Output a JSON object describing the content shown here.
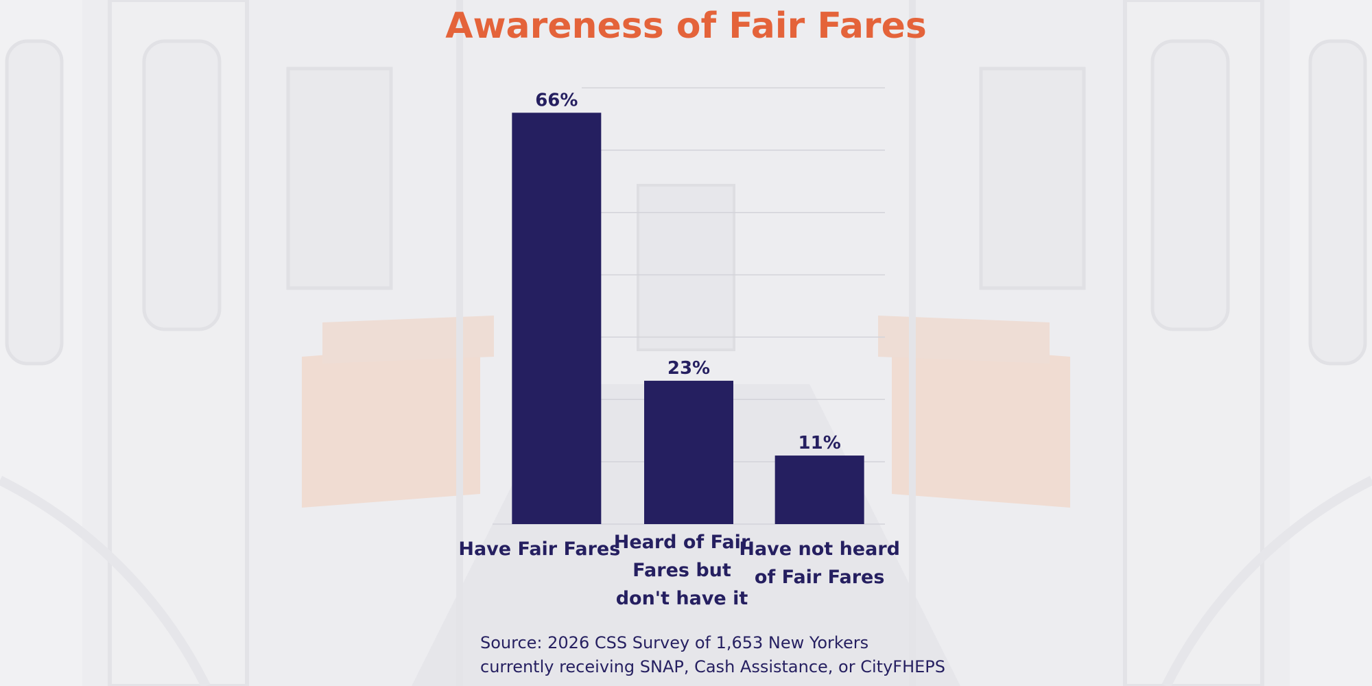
{
  "colors": {
    "title": "#e4633a",
    "bar": "#251f60",
    "text": "#251f60",
    "gridline": "#d3d3d9"
  },
  "footer": {
    "source_line1": "Source: 2026 CSS Survey of 1,653 New Yorkers",
    "source_line2": "currently receiving SNAP, Cash Assistance, or CityFHEPS"
  },
  "chart_data": {
    "type": "bar",
    "title": "Awareness of Fair Fares",
    "xlabel": "",
    "ylabel": "",
    "categories": [
      [
        "Have Fair Fares"
      ],
      [
        "Heard of Fair",
        "Fares but",
        "don't have it"
      ],
      [
        "Have not heard",
        "of Fair Fares"
      ]
    ],
    "values": [
      66,
      23,
      11
    ],
    "data_labels": [
      "66%",
      "23%",
      "11%"
    ],
    "ylim": [
      0,
      70
    ],
    "grid": true,
    "legend": "none"
  }
}
